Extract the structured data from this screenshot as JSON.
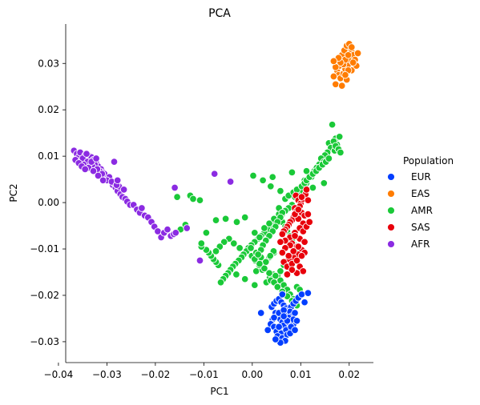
{
  "chart_data": {
    "type": "scatter",
    "title": "PCA",
    "xlabel": "PC1",
    "ylabel": "PC2",
    "xlim": [
      -0.0385,
      0.025
    ],
    "ylim": [
      -0.0345,
      0.0385
    ],
    "x_ticks": [
      -0.04,
      -0.03,
      -0.02,
      -0.01,
      0.0,
      0.01,
      0.02
    ],
    "x_tick_labels": [
      "−0.04",
      "−0.03",
      "−0.02",
      "−0.01",
      "0.00",
      "0.01",
      "0.02"
    ],
    "y_ticks": [
      0.03,
      0.02,
      0.01,
      0.0,
      -0.01,
      -0.02,
      -0.03
    ],
    "y_tick_labels": [
      "0.03",
      "0.02",
      "0.01",
      "0.00",
      "−0.01",
      "−0.02",
      "−0.03"
    ],
    "grid": false,
    "legend": {
      "title": "Population",
      "placement": "right",
      "entries": [
        "EUR",
        "EAS",
        "AMR",
        "SAS",
        "AFR"
      ]
    },
    "colors": {
      "EUR": "#023eff",
      "EAS": "#ff7c00",
      "AMR": "#1ac938",
      "SAS": "#e8000b",
      "AFR": "#8b2be2"
    },
    "series": [
      {
        "name": "AMR",
        "x": [
          0.0165,
          0.0172,
          0.018,
          0.0158,
          0.0162,
          0.0175,
          0.017,
          0.0155,
          0.015,
          0.0145,
          0.014,
          0.0135,
          0.013,
          0.0125,
          0.012,
          0.0115,
          0.011,
          0.0105,
          0.015,
          0.0142,
          0.0138,
          0.0128,
          0.0118,
          0.0108,
          0.0148,
          0.0133,
          0.0122,
          0.0112,
          0.0102,
          0.0098,
          0.0092,
          0.0088,
          0.0095,
          0.0082,
          0.0075,
          0.0068,
          0.0062,
          0.0055,
          0.0048,
          0.0042,
          0.0038,
          0.0032,
          0.0025,
          0.0018,
          0.0012,
          0.0005,
          -0.0002,
          -0.0008,
          -0.0012,
          -0.0018,
          -0.0022,
          -0.0028,
          -0.0035,
          -0.004,
          -0.0045,
          -0.005,
          -0.0055,
          -0.006,
          -0.0065,
          -0.007,
          -0.0075,
          -0.008,
          -0.0085,
          -0.009,
          -0.0095,
          -0.0105,
          0.0045,
          0.0035,
          0.0028,
          0.0015,
          0.0008,
          0.0052,
          0.0058,
          0.0065,
          0.0072,
          0.0078,
          0.0085,
          0.0092,
          0.0043,
          0.0036,
          0.0029,
          0.0021,
          0.0014,
          0.0006,
          -0.0001,
          -0.0026,
          -0.0038,
          -0.0048,
          -0.0058,
          -0.0067,
          0.0005,
          0.0015,
          0.0025,
          0.0035,
          0.0045,
          0.0055,
          0.0062,
          0.0068,
          0.0072,
          0.0078,
          0.0082,
          0.0088,
          0.0092,
          0.0065,
          0.0058,
          0.0048,
          0.0038,
          0.0028,
          0.0018,
          0.0008,
          -0.0003,
          0.0045,
          0.0052,
          0.0062,
          0.0072,
          0.0082,
          0.0092,
          0.0098,
          0.0035,
          0.0025,
          0.0015,
          0.0005,
          0.0005,
          -0.0015,
          -0.0033,
          0.0044,
          0.0037,
          0.0068,
          0.0075,
          0.0085,
          0.0092,
          0.0055,
          0.0062,
          0.0058,
          0.0052,
          0.0048,
          0.0042,
          0.0035,
          0.0028,
          0.0022,
          0.0018,
          0.0012,
          0.0102,
          0.0108,
          0.0112,
          0.0118,
          0.0125,
          0.0132,
          0.0138,
          0.0145,
          0.0152,
          0.0158,
          -0.0155,
          -0.0128,
          -0.0122,
          -0.0108,
          -0.0095,
          -0.0075,
          -0.0055,
          -0.0032,
          -0.0015,
          0.0002,
          0.0022,
          0.0038,
          0.0042,
          0.0058,
          0.0082,
          0.0112,
          0.0125,
          0.0148,
          0.0168,
          0.0172,
          0.0178,
          0.0182,
          -0.0148,
          -0.0138,
          -0.0105,
          -0.0075
        ],
        "y": [
          0.0168,
          0.0138,
          0.0142,
          0.0128,
          0.0118,
          0.0125,
          0.0112,
          0.0108,
          0.0098,
          0.0092,
          0.0085,
          0.0078,
          0.0072,
          0.0065,
          0.0058,
          0.0052,
          0.0045,
          0.0038,
          0.0102,
          0.0095,
          0.0082,
          0.0068,
          0.0062,
          0.0048,
          0.0088,
          0.0075,
          0.0055,
          0.0042,
          0.0032,
          0.0025,
          0.0018,
          0.0012,
          0.0005,
          -0.0005,
          -0.0012,
          -0.0018,
          -0.0025,
          -0.0032,
          -0.0038,
          -0.0045,
          -0.0052,
          -0.0058,
          -0.0065,
          -0.0072,
          -0.0078,
          -0.0085,
          -0.0092,
          -0.0098,
          -0.0105,
          -0.0112,
          -0.0118,
          -0.0125,
          -0.0132,
          -0.0138,
          -0.0145,
          -0.0152,
          -0.0158,
          -0.0165,
          -0.0172,
          -0.0135,
          -0.0128,
          -0.0122,
          -0.0115,
          -0.0108,
          -0.0102,
          -0.0095,
          -0.0108,
          -0.0118,
          -0.0128,
          -0.0138,
          -0.0148,
          -0.0158,
          -0.0168,
          -0.0178,
          -0.0188,
          -0.0198,
          -0.0208,
          -0.0182,
          -0.0155,
          -0.0162,
          -0.0172,
          -0.0145,
          -0.0135,
          -0.0125,
          -0.0115,
          -0.0098,
          -0.0088,
          -0.0078,
          -0.0085,
          -0.0095,
          -0.0065,
          -0.0075,
          -0.0055,
          -0.0045,
          -0.0035,
          -0.0025,
          -0.0042,
          -0.0052,
          -0.0062,
          -0.0072,
          -0.0082,
          -0.0092,
          -0.0102,
          -0.0135,
          -0.0148,
          -0.0158,
          -0.0168,
          -0.0128,
          -0.0118,
          -0.0108,
          -0.0098,
          -0.0172,
          -0.0182,
          -0.0192,
          -0.0202,
          -0.0212,
          -0.0222,
          -0.0188,
          -0.0152,
          -0.0142,
          -0.0132,
          -0.0122,
          -0.0178,
          -0.0165,
          -0.0155,
          -0.0105,
          -0.0115,
          0.0008,
          0.0015,
          0.0022,
          0.0028,
          -0.0012,
          -0.0022,
          -0.0032,
          -0.0042,
          -0.0052,
          -0.0062,
          -0.0072,
          -0.0082,
          -0.0092,
          -0.0102,
          -0.0112,
          0.0035,
          0.0042,
          0.0048,
          0.0055,
          0.0062,
          0.0068,
          0.0075,
          0.0082,
          0.0088,
          0.0095,
          0.0012,
          0.0015,
          0.0008,
          0.0005,
          -0.0065,
          -0.0038,
          -0.0035,
          -0.0042,
          -0.0032,
          0.0058,
          0.0048,
          0.0035,
          0.0055,
          0.0025,
          0.0065,
          0.0068,
          0.0032,
          0.0042,
          0.0132,
          0.0122,
          0.0115,
          0.0108,
          -0.0058,
          -0.0048,
          -0.0088,
          -0.0105
        ]
      },
      {
        "name": "SAS",
        "x": [
          0.009,
          0.0095,
          0.01,
          0.0105,
          0.011,
          0.0098,
          0.0088,
          0.0092,
          0.0102,
          0.0108,
          0.0085,
          0.0082,
          0.0078,
          0.0075,
          0.0072,
          0.0068,
          0.0065,
          0.0062,
          0.0095,
          0.0105,
          0.0115,
          0.0112,
          0.0098,
          0.0088,
          0.0078,
          0.0068,
          0.0082,
          0.0092,
          0.0102,
          0.0108,
          0.0095,
          0.0085,
          0.0075,
          0.0065,
          0.0072,
          0.0082,
          0.0092,
          0.0102,
          0.0098,
          0.0088,
          0.0078,
          0.0068,
          0.0062,
          0.0058,
          0.0105,
          0.0112,
          0.0118,
          0.0108,
          0.0095,
          0.0085,
          0.0075,
          0.0098,
          0.0105,
          0.0092,
          0.0082,
          0.0072,
          0.0088,
          0.0095,
          0.0102,
          0.0115
        ],
        "y": [
          0.0015,
          0.0005,
          -0.0002,
          0.0008,
          0.0018,
          -0.0008,
          -0.0012,
          -0.0018,
          -0.0022,
          -0.0028,
          -0.0032,
          -0.0038,
          -0.0042,
          -0.0048,
          -0.0052,
          -0.0058,
          -0.0062,
          -0.0068,
          -0.0035,
          -0.0045,
          -0.0025,
          0.0028,
          -0.0055,
          -0.0065,
          -0.0075,
          -0.0082,
          -0.0088,
          -0.0095,
          -0.0102,
          -0.0108,
          -0.0112,
          -0.0118,
          -0.0122,
          -0.0128,
          -0.0138,
          -0.0132,
          -0.0125,
          -0.0115,
          -0.0078,
          -0.0072,
          -0.0092,
          -0.0098,
          -0.0108,
          -0.0085,
          -0.0062,
          -0.0052,
          -0.0042,
          -0.0085,
          -0.0095,
          -0.0105,
          -0.0115,
          -0.0138,
          -0.0148,
          -0.0152,
          -0.0145,
          -0.0155,
          -0.0025,
          -0.0015,
          0.0012,
          0.0005
        ]
      },
      {
        "name": "EUR",
        "x": [
          0.004,
          0.0045,
          0.005,
          0.0055,
          0.006,
          0.0065,
          0.007,
          0.0075,
          0.008,
          0.0085,
          0.009,
          0.0048,
          0.0052,
          0.0058,
          0.0062,
          0.0068,
          0.0072,
          0.0078,
          0.0082,
          0.0088,
          0.0042,
          0.0038,
          0.0045,
          0.0055,
          0.0065,
          0.0075,
          0.0085,
          0.005,
          0.006,
          0.007,
          0.008,
          0.0045,
          0.0055,
          0.0065,
          0.0075,
          0.0085,
          0.0052,
          0.0062,
          0.0072,
          0.0068,
          0.0058,
          0.0048,
          0.0078,
          0.0088,
          0.0092,
          0.0095,
          0.0102,
          0.0115,
          0.0108,
          0.0018,
          0.0032,
          0.0062,
          0.0055,
          0.0072,
          0.0065
        ],
        "y": [
          -0.0225,
          -0.0218,
          -0.0212,
          -0.0208,
          -0.0215,
          -0.0222,
          -0.0228,
          -0.0232,
          -0.0225,
          -0.0218,
          -0.0212,
          -0.0238,
          -0.0245,
          -0.0252,
          -0.0258,
          -0.0248,
          -0.0242,
          -0.0235,
          -0.0245,
          -0.0238,
          -0.0252,
          -0.0262,
          -0.0268,
          -0.0272,
          -0.0265,
          -0.0258,
          -0.0262,
          -0.0278,
          -0.0282,
          -0.0275,
          -0.0268,
          -0.0248,
          -0.0238,
          -0.0232,
          -0.0248,
          -0.0252,
          -0.0288,
          -0.0292,
          -0.0285,
          -0.0298,
          -0.0302,
          -0.0295,
          -0.0282,
          -0.0275,
          -0.0255,
          -0.0205,
          -0.0198,
          -0.0195,
          -0.0215,
          -0.0238,
          -0.0275,
          -0.0198,
          -0.0268,
          -0.0255,
          -0.0245
        ]
      },
      {
        "name": "EAS",
        "x": [
          0.0175,
          0.018,
          0.0185,
          0.019,
          0.0195,
          0.02,
          0.0205,
          0.021,
          0.0178,
          0.0182,
          0.0188,
          0.0192,
          0.0198,
          0.0202,
          0.0208,
          0.0185,
          0.019,
          0.0195,
          0.02,
          0.0205,
          0.0188,
          0.0192,
          0.0198,
          0.0182,
          0.0178,
          0.0172,
          0.0168,
          0.0185,
          0.0195,
          0.0205,
          0.0215,
          0.0212,
          0.0218,
          0.0208,
          0.0198,
          0.0172,
          0.0168,
          0.0192
        ],
        "y": [
          0.0285,
          0.0295,
          0.0305,
          0.0315,
          0.0325,
          0.0335,
          0.0325,
          0.0315,
          0.0275,
          0.0268,
          0.0278,
          0.0288,
          0.0298,
          0.0308,
          0.0318,
          0.0318,
          0.0328,
          0.0338,
          0.0342,
          0.0335,
          0.0298,
          0.0308,
          0.0318,
          0.0302,
          0.0312,
          0.0255,
          0.0272,
          0.0252,
          0.0265,
          0.0285,
          0.0295,
          0.0308,
          0.0322,
          0.0302,
          0.0285,
          0.0292,
          0.0305,
          0.0275
        ]
      },
      {
        "name": "AFR",
        "x": [
          -0.0368,
          -0.0362,
          -0.0358,
          -0.0352,
          -0.0348,
          -0.0342,
          -0.0338,
          -0.0332,
          -0.0328,
          -0.0322,
          -0.0318,
          -0.0312,
          -0.0308,
          -0.0302,
          -0.0298,
          -0.0292,
          -0.0288,
          -0.0282,
          -0.0278,
          -0.0272,
          -0.0268,
          -0.0262,
          -0.0258,
          -0.0252,
          -0.0355,
          -0.0345,
          -0.0335,
          -0.0325,
          -0.0315,
          -0.0305,
          -0.0295,
          -0.0285,
          -0.0275,
          -0.0265,
          -0.035,
          -0.034,
          -0.033,
          -0.032,
          -0.031,
          -0.03,
          -0.029,
          -0.028,
          -0.0348,
          -0.0338,
          -0.0328,
          -0.0318,
          -0.0308,
          -0.0342,
          -0.0332,
          -0.0322,
          -0.0365,
          -0.0358,
          -0.0352,
          -0.0345,
          -0.0245,
          -0.0238,
          -0.0232,
          -0.0228,
          -0.0222,
          -0.0215,
          -0.0208,
          -0.0202,
          -0.0195,
          -0.0188,
          -0.0182,
          -0.0175,
          -0.0168,
          -0.0162,
          -0.0285,
          -0.0278,
          -0.016,
          -0.0108,
          -0.0078,
          -0.0045,
          -0.0135,
          -0.0158
        ],
        "y": [
          0.0112,
          0.0105,
          0.0098,
          0.0092,
          0.0088,
          0.0095,
          0.0102,
          0.0098,
          0.0092,
          0.0085,
          0.0078,
          0.0072,
          0.0065,
          0.0058,
          0.0052,
          0.0045,
          0.0038,
          0.0032,
          0.0025,
          0.0018,
          0.0012,
          0.0008,
          0.0002,
          -0.0005,
          0.0108,
          0.0102,
          0.0085,
          0.0082,
          0.0068,
          0.0062,
          0.0055,
          0.0042,
          0.0035,
          0.0028,
          0.0095,
          0.0088,
          0.0078,
          0.0072,
          0.0062,
          0.0048,
          0.0045,
          0.0038,
          0.0082,
          0.0075,
          0.0068,
          0.0058,
          0.0048,
          0.0105,
          0.0088,
          0.0095,
          0.0092,
          0.0085,
          0.0078,
          0.0072,
          -0.0005,
          -0.0015,
          -0.0022,
          -0.0012,
          -0.0028,
          -0.0032,
          -0.0042,
          -0.0052,
          -0.0062,
          -0.0075,
          -0.0065,
          -0.0058,
          -0.0072,
          -0.0068,
          0.0088,
          0.0048,
          0.0032,
          -0.0125,
          0.0062,
          0.0045,
          -0.0055,
          -0.0065
        ]
      }
    ]
  }
}
